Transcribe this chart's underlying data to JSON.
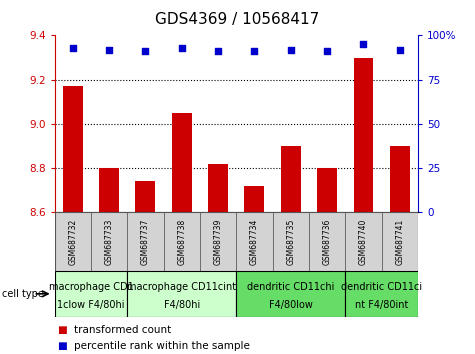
{
  "title": "GDS4369 / 10568417",
  "samples": [
    "GSM687732",
    "GSM687733",
    "GSM687737",
    "GSM687738",
    "GSM687739",
    "GSM687734",
    "GSM687735",
    "GSM687736",
    "GSM687740",
    "GSM687741"
  ],
  "bar_values": [
    9.17,
    8.8,
    8.74,
    9.05,
    8.82,
    8.72,
    8.9,
    8.8,
    9.3,
    8.9
  ],
  "percentile_values": [
    93,
    92,
    91,
    93,
    91,
    91,
    92,
    91,
    95,
    92
  ],
  "ylim_left": [
    8.6,
    9.4
  ],
  "ylim_right": [
    0,
    100
  ],
  "yticks_left": [
    8.6,
    8.8,
    9.0,
    9.2,
    9.4
  ],
  "yticks_right": [
    0,
    25,
    50,
    75,
    100
  ],
  "bar_color": "#cc0000",
  "dot_color": "#0000cc",
  "baseline": 8.6,
  "cell_types": [
    {
      "label": "macrophage CD1\n1clow F4/80hi",
      "start": 0,
      "end": 2,
      "color": "#ccffcc"
    },
    {
      "label": "macrophage CD11cint\nF4/80hi",
      "start": 2,
      "end": 5,
      "color": "#ccffcc"
    },
    {
      "label": "dendritic CD11chi\nF4/80low",
      "start": 5,
      "end": 8,
      "color": "#66dd66"
    },
    {
      "label": "dendritic CD11ci\nnt F4/80int",
      "start": 8,
      "end": 10,
      "color": "#66dd66"
    }
  ],
  "legend_bar_label": "transformed count",
  "legend_dot_label": "percentile rank within the sample",
  "cell_type_label": "cell type",
  "title_fontsize": 11,
  "tick_fontsize": 7.5,
  "sample_fontsize": 5.5,
  "cell_label_fontsize": 7.0,
  "legend_fontsize": 7.5
}
